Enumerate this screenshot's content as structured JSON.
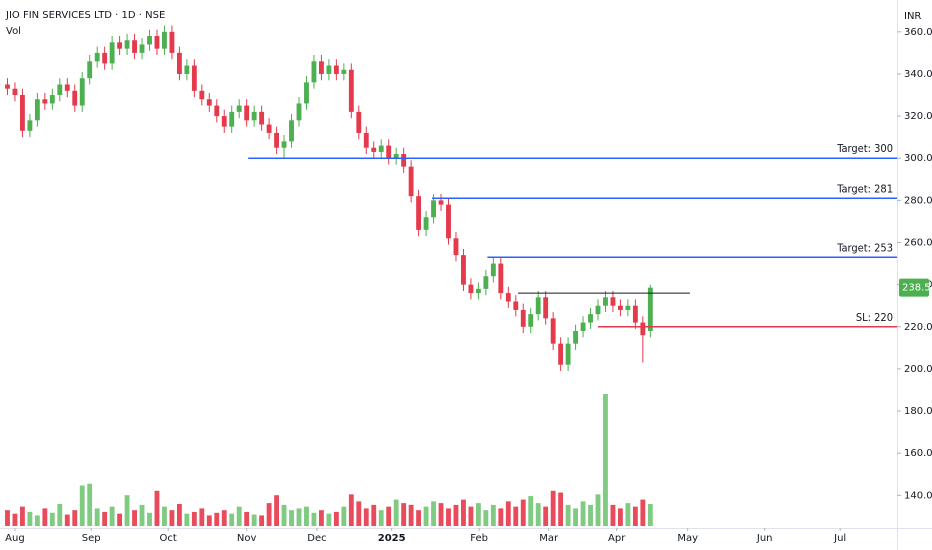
{
  "chart_data": {
    "type": "candlestick",
    "title": "JIO FIN SERVICES LTD · 1D · NSE",
    "subtitle": "Vol",
    "currency": "INR",
    "up_color": "#4caf50",
    "down_color": "#e5394c",
    "volume_up_color": "#7fcb82",
    "volume_down_color": "#e84b5b",
    "xlim": [
      -1,
      119
    ],
    "ylim": [
      124.5,
      375.1
    ],
    "volume_lim": [
      0,
      600
    ],
    "grid": false,
    "xticks": [
      {
        "value": 1,
        "label": "Aug"
      },
      {
        "value": 11.2,
        "label": "Sep"
      },
      {
        "value": 21.5,
        "label": "Oct"
      },
      {
        "value": 32,
        "label": "Nov"
      },
      {
        "value": 41.4,
        "label": "Dec"
      },
      {
        "value": 51.4,
        "label": "2025"
      },
      {
        "value": 63.1,
        "label": "Feb"
      },
      {
        "value": 72.4,
        "label": "Mar"
      },
      {
        "value": 81.5,
        "label": "Apr"
      },
      {
        "value": 91,
        "label": "May"
      },
      {
        "value": 101.3,
        "label": "Jun"
      },
      {
        "value": 111.4,
        "label": "Jul"
      }
    ],
    "yticks": [
      {
        "value": 140,
        "label": "140.00"
      },
      {
        "value": 160,
        "label": "160.00"
      },
      {
        "value": 180,
        "label": "180.00"
      },
      {
        "value": 200,
        "label": "200.00"
      },
      {
        "value": 220,
        "label": "220.00"
      },
      {
        "value": 240,
        "label": "240.00"
      },
      {
        "value": 260,
        "label": "260.00"
      },
      {
        "value": 280,
        "label": "280.00"
      },
      {
        "value": 300,
        "label": "300.00"
      },
      {
        "value": 320,
        "label": "320.00"
      },
      {
        "value": 340,
        "label": "340.00"
      },
      {
        "value": 360,
        "label": "360.00"
      }
    ],
    "open": [
      335,
      333,
      330,
      313,
      318,
      328,
      326,
      330,
      335,
      332,
      325,
      338,
      346,
      350,
      345,
      355,
      352,
      356,
      350,
      354,
      358,
      352,
      360,
      350,
      340,
      344,
      332,
      328,
      325,
      320,
      315,
      322,
      325,
      318,
      322,
      316,
      312,
      305,
      308,
      318,
      326,
      336,
      346,
      340,
      344,
      340,
      342,
      322,
      312,
      305,
      303,
      306,
      300,
      302,
      296,
      282,
      266,
      272,
      280,
      278,
      262,
      254,
      240,
      236,
      238,
      244,
      250,
      236,
      232,
      228,
      220,
      226,
      234,
      224,
      212,
      202,
      212,
      218,
      222,
      226,
      230,
      234,
      230,
      228,
      230,
      222,
      218
    ],
    "high": [
      338,
      336,
      333,
      321,
      331,
      331,
      333,
      338,
      338,
      335,
      341,
      349,
      353,
      353,
      358,
      358,
      359,
      359,
      357,
      361,
      361,
      363,
      363,
      353,
      347,
      347,
      335,
      331,
      328,
      323,
      325,
      328,
      328,
      325,
      325,
      319,
      315,
      311,
      321,
      329,
      339,
      349,
      349,
      347,
      347,
      345,
      345,
      325,
      315,
      308,
      309,
      309,
      305,
      305,
      299,
      285,
      275,
      283,
      283,
      281,
      265,
      257,
      243,
      241,
      247,
      253,
      253,
      239,
      235,
      231,
      229,
      237,
      237,
      227,
      215,
      215,
      221,
      225,
      229,
      233,
      237,
      237,
      233,
      233,
      233,
      225,
      240
    ],
    "low": [
      330,
      327,
      310,
      310,
      315,
      323,
      323,
      327,
      329,
      322,
      322,
      335,
      343,
      342,
      342,
      349,
      349,
      347,
      347,
      351,
      349,
      349,
      347,
      337,
      337,
      329,
      325,
      322,
      317,
      312,
      312,
      319,
      315,
      315,
      313,
      309,
      302,
      300,
      305,
      315,
      323,
      333,
      337,
      337,
      337,
      337,
      319,
      309,
      302,
      300,
      300,
      297,
      297,
      293,
      279,
      263,
      263,
      269,
      275,
      259,
      251,
      237,
      233,
      233,
      235,
      241,
      233,
      229,
      225,
      217,
      217,
      223,
      221,
      209,
      199,
      199,
      209,
      215,
      219,
      223,
      227,
      227,
      225,
      225,
      219,
      203,
      215
    ],
    "close": [
      333,
      330,
      313,
      318,
      328,
      326,
      330,
      335,
      332,
      325,
      338,
      346,
      350,
      345,
      355,
      352,
      356,
      350,
      354,
      358,
      352,
      360,
      350,
      340,
      344,
      332,
      328,
      325,
      320,
      315,
      322,
      325,
      318,
      322,
      316,
      312,
      305,
      308,
      318,
      326,
      336,
      346,
      340,
      344,
      340,
      342,
      322,
      312,
      305,
      303,
      306,
      300,
      302,
      296,
      282,
      266,
      272,
      280,
      278,
      262,
      254,
      240,
      236,
      238,
      244,
      250,
      236,
      232,
      228,
      220,
      226,
      234,
      224,
      212,
      202,
      212,
      218,
      222,
      226,
      230,
      234,
      230,
      228,
      230,
      222,
      216,
      238.57
    ],
    "volume": [
      18,
      14,
      22,
      16,
      12,
      20,
      15,
      25,
      13,
      18,
      46,
      48,
      20,
      16,
      22,
      14,
      35,
      18,
      24,
      15,
      40,
      22,
      18,
      25,
      14,
      16,
      20,
      12,
      15,
      18,
      14,
      22,
      16,
      13,
      12,
      26,
      35,
      24,
      18,
      20,
      22,
      15,
      18,
      14,
      16,
      22,
      36,
      28,
      20,
      24,
      18,
      22,
      30,
      26,
      24,
      18,
      22,
      28,
      26,
      20,
      24,
      30,
      22,
      26,
      18,
      24,
      20,
      28,
      22,
      30,
      34,
      26,
      22,
      40,
      38,
      24,
      20,
      28,
      24,
      36,
      150,
      24,
      20,
      26,
      22,
      30,
      25
    ],
    "annotations": [
      {
        "label": "Target: 300",
        "value": 300,
        "color": "#2962ff",
        "from": 32.2
      },
      {
        "label": "Target: 281",
        "value": 281,
        "color": "#2962ff",
        "from": 56.8
      },
      {
        "label": "Target: 253",
        "value": 253,
        "color": "#2962ff",
        "from": 64.2
      },
      {
        "value": 236,
        "color": "#131722",
        "from": 68.3,
        "to": 91.3
      },
      {
        "label": "SL: 220",
        "value": 220,
        "color": "#e5394c",
        "from": 79
      }
    ]
  }
}
